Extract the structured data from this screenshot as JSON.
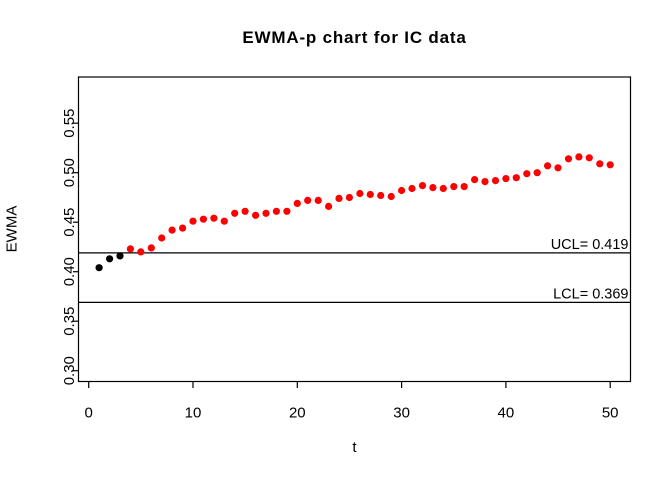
{
  "window": {
    "background_color": "#ffffff"
  },
  "chart_data": {
    "type": "scatter",
    "title": "EWMA-p chart for IC data",
    "xlabel": "t",
    "ylabel": "EWMA",
    "x_ticks": [
      0,
      10,
      20,
      30,
      40,
      50
    ],
    "x_tick_labels": [
      "0",
      "10",
      "20",
      "30",
      "40",
      "50"
    ],
    "y_ticks": [
      0.3,
      0.35,
      0.4,
      0.45,
      0.5,
      0.55
    ],
    "y_tick_labels": [
      "0.30",
      "0.35",
      "0.40",
      "0.45",
      "0.50",
      "0.55"
    ],
    "xlim": [
      -0.96,
      51.96
    ],
    "ylim": [
      0.289,
      0.597
    ],
    "grid": false,
    "ucl": {
      "label": "UCL= 0.419",
      "value": 0.419
    },
    "lcl": {
      "label": "LCL= 0.369",
      "value": 0.369
    },
    "series": [
      {
        "name": "EWMA statistic",
        "marker": "filled-circle",
        "black_point_count": 3,
        "t": [
          1,
          2,
          3,
          4,
          5,
          6,
          7,
          8,
          9,
          10,
          11,
          12,
          13,
          14,
          15,
          16,
          17,
          18,
          19,
          20,
          21,
          22,
          23,
          24,
          25,
          26,
          27,
          28,
          29,
          30,
          31,
          32,
          33,
          34,
          35,
          36,
          37,
          38,
          39,
          40,
          41,
          42,
          43,
          44,
          45,
          46,
          47,
          48,
          49,
          50
        ],
        "ewma": [
          0.404,
          0.413,
          0.416,
          0.423,
          0.42,
          0.424,
          0.434,
          0.442,
          0.444,
          0.451,
          0.453,
          0.454,
          0.451,
          0.459,
          0.461,
          0.457,
          0.459,
          0.461,
          0.461,
          0.469,
          0.472,
          0.472,
          0.466,
          0.474,
          0.475,
          0.479,
          0.478,
          0.477,
          0.476,
          0.482,
          0.484,
          0.487,
          0.485,
          0.484,
          0.486,
          0.486,
          0.493,
          0.491,
          0.492,
          0.494,
          0.495,
          0.499,
          0.5,
          0.507,
          0.505,
          0.514,
          0.516,
          0.515,
          0.509,
          0.508
        ]
      }
    ],
    "colors": {
      "point_red": "#ff0000",
      "point_black": "#000000",
      "axis": "#000000",
      "background": "#ffffff"
    }
  }
}
